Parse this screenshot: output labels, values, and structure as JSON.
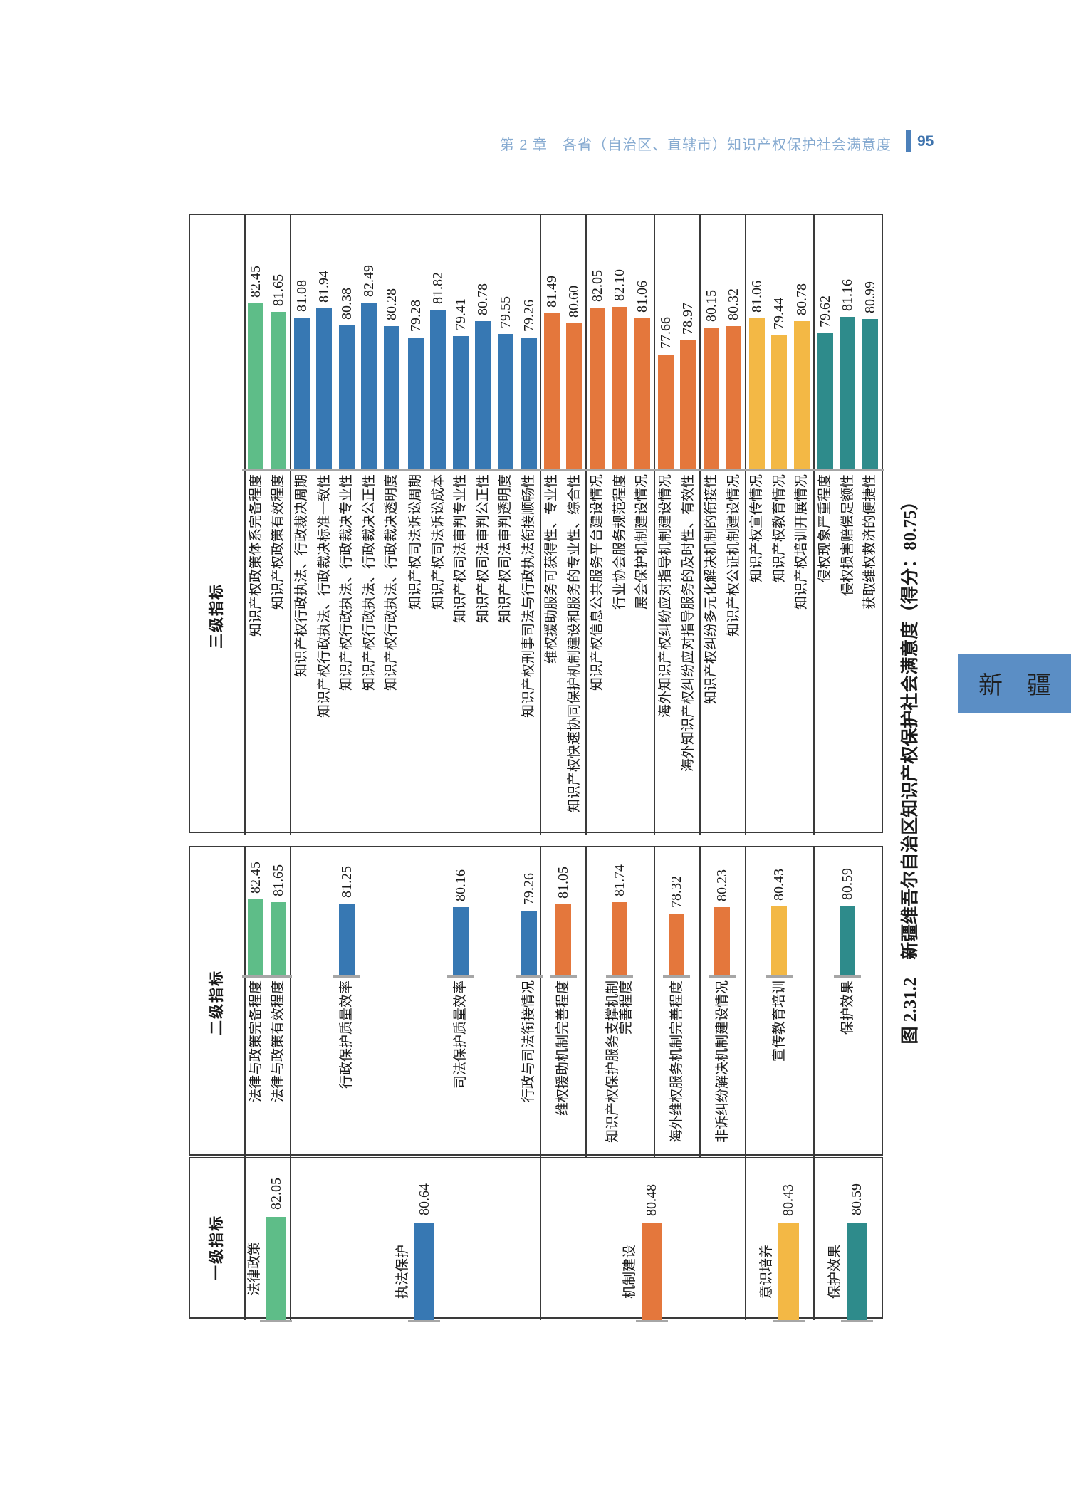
{
  "page_header": {
    "chapter_title": "第 2 章　各省（自治区、直辖市）知识产权保护社会满意度",
    "page_number": "95"
  },
  "figure_caption": "图 2.31.2　新疆维吾尔自治区知识产权保护社会满意度（得分：80.75）",
  "province_tab": "新　疆",
  "colors": {
    "green": "#5ebd88",
    "blue": "#3778b3",
    "orange": "#e4773c",
    "yellow": "#f3b845",
    "teal": "#2e8b8b",
    "border": "#3a3a3a",
    "tick": "#a6a6a6",
    "text": "#1a1a1a"
  },
  "chart_data": {
    "type": "bar",
    "title": "图 2.31.2　新疆维吾尔自治区知识产权保护社会满意度（得分：80.75）",
    "overall_score": "80.75",
    "legend_position": "none",
    "grid": false,
    "sections": [
      {
        "header": "三级指标",
        "groups": [
          {
            "color_key": "green",
            "bars": [
              {
                "label": "知识产权政策体系完备程度",
                "value": "82.45"
              },
              {
                "label": "知识产权政策有效程度",
                "value": "81.65"
              }
            ]
          },
          {
            "color_key": "blue",
            "bars": [
              {
                "label": "知识产权行政执法、行政裁决周期",
                "value": "81.08"
              },
              {
                "label": "知识产权行政执法、行政裁决标准一致性",
                "value": "81.94"
              },
              {
                "label": "知识产权行政执法、行政裁决专业性",
                "value": "80.38"
              },
              {
                "label": "知识产权行政执法、行政裁决公正性",
                "value": "82.49"
              },
              {
                "label": "知识产权行政执法、行政裁决透明度",
                "value": "80.28"
              }
            ]
          },
          {
            "color_key": "blue",
            "bars": [
              {
                "label": "知识产权司法诉讼周期",
                "value": "79.28"
              },
              {
                "label": "知识产权司法诉讼成本",
                "value": "81.82"
              },
              {
                "label": "知识产权司法审判专业性",
                "value": "79.41"
              },
              {
                "label": "知识产权司法审判公正性",
                "value": "80.78"
              },
              {
                "label": "知识产权司法审判透明度",
                "value": "79.55"
              }
            ]
          },
          {
            "color_key": "blue",
            "bars": [
              {
                "label": "知识产权刑事司法与行政执法衔接顺畅性",
                "value": "79.26"
              }
            ]
          },
          {
            "color_key": "orange",
            "bars": [
              {
                "label": "维权援助服务可获得性、专业性",
                "value": "81.49"
              },
              {
                "label": "知识产权快速协同保护机制建设和服务的专业性、综合性",
                "value": "80.60"
              }
            ]
          },
          {
            "color_key": "orange",
            "bars": [
              {
                "label": "知识产权信息公共服务平台建设情况",
                "value": "82.05"
              },
              {
                "label": "行业协会服务规范程度",
                "value": "82.10"
              },
              {
                "label": "展会保护机制建设情况",
                "value": "81.06"
              }
            ]
          },
          {
            "color_key": "orange",
            "bars": [
              {
                "label": "海外知识产权纠纷应对指导机制建设情况",
                "value": "77.66"
              },
              {
                "label": "海外知识产权纠纷应对指导服务的及时性、有效性",
                "value": "78.97"
              }
            ]
          },
          {
            "color_key": "orange",
            "bars": [
              {
                "label": "知识产权纠纷多元化解决机制的衔接性",
                "value": "80.15"
              },
              {
                "label": "知识产权公证机制建设情况",
                "value": "80.32"
              }
            ]
          },
          {
            "color_key": "yellow",
            "bars": [
              {
                "label": "知识产权宣传情况",
                "value": "81.06"
              },
              {
                "label": "知识产权教育情况",
                "value": "79.44"
              },
              {
                "label": "知识产权培训开展情况",
                "value": "80.78"
              }
            ]
          },
          {
            "color_key": "teal",
            "bars": [
              {
                "label": "侵权现象严重程度",
                "value": "79.62"
              },
              {
                "label": "侵权损害赔偿足额性",
                "value": "81.16"
              },
              {
                "label": "获取维权救济的便捷性",
                "value": "80.99"
              }
            ]
          }
        ]
      },
      {
        "header": "二级指标",
        "groups": [
          {
            "color_key": "green",
            "span": 2,
            "bars": [
              {
                "label": "法律与政策完备程度",
                "value": "82.45"
              },
              {
                "label": "法律与政策有效程度",
                "value": "81.65"
              }
            ]
          },
          {
            "color_key": "blue",
            "span": 5,
            "bars": [
              {
                "label": "行政保护质量效率",
                "value": "81.25"
              }
            ]
          },
          {
            "color_key": "blue",
            "span": 5,
            "bars": [
              {
                "label": "司法保护质量效率",
                "value": "80.16"
              }
            ]
          },
          {
            "color_key": "blue",
            "span": 1,
            "bars": [
              {
                "label": "行政与司法衔接情况",
                "value": "79.26"
              }
            ]
          },
          {
            "color_key": "orange",
            "span": 2,
            "bars": [
              {
                "label": "维权援助机制完善程度",
                "value": "81.05"
              }
            ]
          },
          {
            "color_key": "orange",
            "span": 3,
            "bars": [
              {
                "label": "知识产权保护服务支撑机制\n完善程度",
                "value": "81.74"
              }
            ]
          },
          {
            "color_key": "orange",
            "span": 2,
            "bars": [
              {
                "label": "海外维权服务机制完善程度",
                "value": "78.32"
              }
            ]
          },
          {
            "color_key": "orange",
            "span": 2,
            "bars": [
              {
                "label": "非诉纠纷解决机制建设情况",
                "value": "80.23"
              }
            ]
          },
          {
            "color_key": "yellow",
            "span": 3,
            "bars": [
              {
                "label": "宣传教育培训",
                "value": "80.43"
              }
            ]
          },
          {
            "color_key": "teal",
            "span": 3,
            "bars": [
              {
                "label": "保护效果",
                "value": "80.59"
              }
            ]
          }
        ]
      },
      {
        "header": "一级指标",
        "groups": [
          {
            "color_key": "green",
            "span": 2,
            "bars": [
              {
                "label": "法律政策",
                "value": "82.05"
              }
            ]
          },
          {
            "color_key": "blue",
            "span": 11,
            "bars": [
              {
                "label": "执法保护",
                "value": "80.64"
              }
            ]
          },
          {
            "color_key": "orange",
            "span": 9,
            "bars": [
              {
                "label": "机制建设",
                "value": "80.48"
              }
            ]
          },
          {
            "color_key": "yellow",
            "span": 3,
            "bars": [
              {
                "label": "意识培养",
                "value": "80.43"
              }
            ]
          },
          {
            "color_key": "teal",
            "span": 3,
            "bars": [
              {
                "label": "保护效果",
                "value": "80.59"
              }
            ]
          }
        ]
      }
    ]
  }
}
